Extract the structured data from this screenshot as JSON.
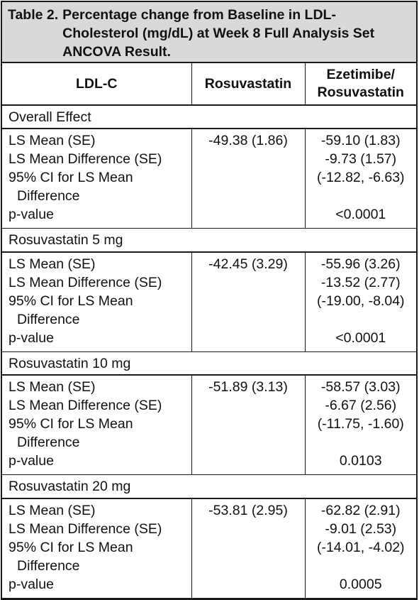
{
  "caption": {
    "label": "Table 2.",
    "text": "Percentage change from Baseline in LDL-Cholesterol (mg/dL) at Week 8 Full Analysis Set ANCOVA Result."
  },
  "headers": {
    "col1": "LDL-C",
    "col2": "Rosuvastatin",
    "col3_line1": "Ezetimibe/",
    "col3_line2": "Rosuvastatin"
  },
  "row_labels": {
    "ls_mean": "LS Mean (SE)",
    "ls_mean_diff": "LS Mean Difference (SE)",
    "ci_line1": "95% CI for LS Mean",
    "ci_line2": "Difference",
    "p_value": "p-value"
  },
  "sections": [
    {
      "title": "Overall Effect",
      "rosuvastatin": {
        "ls_mean": "-49.38 (1.86)"
      },
      "ezetimibe_rosuvastatin": {
        "ls_mean": "-59.10 (1.83)",
        "ls_mean_diff": "-9.73 (1.57)",
        "ci": "(-12.82, -6.63)",
        "p_value": "<0.0001"
      }
    },
    {
      "title": "Rosuvastatin 5 mg",
      "rosuvastatin": {
        "ls_mean": "-42.45 (3.29)"
      },
      "ezetimibe_rosuvastatin": {
        "ls_mean": "-55.96 (3.26)",
        "ls_mean_diff": "-13.52 (2.77)",
        "ci": "(-19.00, -8.04)",
        "p_value": "<0.0001"
      }
    },
    {
      "title": "Rosuvastatin 10 mg",
      "rosuvastatin": {
        "ls_mean": "-51.89 (3.13)"
      },
      "ezetimibe_rosuvastatin": {
        "ls_mean": "-58.57 (3.03)",
        "ls_mean_diff": "-6.67 (2.56)",
        "ci": "(-11.75, -1.60)",
        "p_value": "0.0103"
      }
    },
    {
      "title": "Rosuvastatin 20 mg",
      "rosuvastatin": {
        "ls_mean": "-53.81 (2.95)"
      },
      "ezetimibe_rosuvastatin": {
        "ls_mean": "-62.82 (2.91)",
        "ls_mean_diff": "-9.01 (2.53)",
        "ci": "(-14.01, -4.02)",
        "p_value": "0.0005"
      }
    }
  ],
  "colors": {
    "caption_background": "#d9d9d9",
    "rule": "#1a1a1a"
  }
}
